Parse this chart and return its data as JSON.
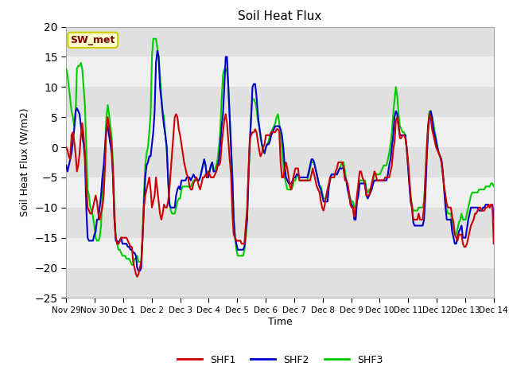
{
  "title": "Soil Heat Flux",
  "ylabel": "Soil Heat Flux (W/m2)",
  "xlabel": "Time",
  "ylim": [
    -25,
    20
  ],
  "yticks": [
    -25,
    -20,
    -15,
    -10,
    -5,
    0,
    5,
    10,
    15,
    20
  ],
  "colors": {
    "SHF1": "#cc0000",
    "SHF2": "#0000cc",
    "SHF3": "#00cc00"
  },
  "legend_label": "SW_met",
  "legend_box_facecolor": "#ffffcc",
  "legend_box_edgecolor": "#cccc00",
  "fig_bg_color": "#ffffff",
  "plot_bg_color": "#ffffff",
  "band_color_dark": "#e0e0e0",
  "band_color_light": "#f0f0f0",
  "xtick_labels": [
    "Nov 29",
    "Nov 30",
    "Dec 1",
    "Dec 2",
    "Dec 3",
    "Dec 4",
    "Dec 5",
    "Dec 6",
    "Dec 7",
    "Dec 8",
    "Dec 9",
    "Dec 10",
    "Dec 11",
    "Dec 12",
    "Dec 13",
    "Dec 14"
  ],
  "linewidth": 1.5,
  "series": {
    "SHF1": [
      0.0,
      -0.5,
      -1.5,
      -2.0,
      2.0,
      2.5,
      1.0,
      -1.0,
      -4.0,
      -3.0,
      -1.0,
      2.0,
      4.0,
      2.0,
      -1.0,
      -6.0,
      -10.0,
      -10.5,
      -11.0,
      -11.0,
      -10.0,
      -9.0,
      -8.0,
      -9.0,
      -11.0,
      -12.0,
      -11.0,
      -10.0,
      -8.0,
      -3.0,
      3.0,
      5.0,
      3.5,
      2.0,
      0.0,
      -5.0,
      -12.0,
      -15.0,
      -16.0,
      -16.0,
      -15.5,
      -15.0,
      -15.0,
      -15.0,
      -15.0,
      -15.0,
      -15.5,
      -16.0,
      -16.5,
      -16.5,
      -19.0,
      -20.0,
      -21.0,
      -21.5,
      -21.0,
      -20.0,
      -19.0,
      -15.0,
      -10.0,
      -8.0,
      -7.0,
      -6.0,
      -5.0,
      -7.0,
      -10.0,
      -9.0,
      -8.0,
      -5.0,
      -7.0,
      -9.0,
      -11.0,
      -12.0,
      -11.0,
      -9.5,
      -10.0,
      -10.0,
      -9.0,
      -7.0,
      -4.0,
      -1.0,
      2.0,
      5.0,
      5.5,
      5.0,
      3.0,
      2.0,
      0.5,
      -1.0,
      -2.5,
      -3.5,
      -4.5,
      -5.0,
      -6.5,
      -7.0,
      -7.0,
      -6.0,
      -5.5,
      -5.0,
      -5.5,
      -6.5,
      -7.0,
      -6.0,
      -5.0,
      -5.0,
      -4.5,
      -5.0,
      -4.0,
      -4.5,
      -5.0,
      -5.0,
      -5.0,
      -4.5,
      -4.0,
      -3.0,
      -3.0,
      -2.5,
      0.5,
      2.5,
      4.5,
      5.5,
      4.0,
      1.0,
      -2.0,
      -4.5,
      -11.0,
      -14.5,
      -15.0,
      -15.5,
      -15.5,
      -15.5,
      -15.5,
      -16.0,
      -16.0,
      -16.0,
      -13.0,
      -10.0,
      -4.0,
      1.5,
      2.0,
      2.5,
      2.5,
      3.0,
      2.5,
      1.0,
      -0.5,
      -1.5,
      -1.0,
      0.0,
      0.5,
      2.0,
      2.0,
      2.0,
      2.0,
      2.5,
      2.5,
      2.5,
      2.5,
      3.0,
      3.0,
      2.5,
      -2.5,
      -5.0,
      -5.0,
      -3.5,
      -2.5,
      -3.5,
      -5.0,
      -6.5,
      -7.0,
      -5.5,
      -4.5,
      -3.5,
      -3.5,
      -3.5,
      -5.5,
      -5.5,
      -5.5,
      -5.5,
      -5.5,
      -5.5,
      -5.5,
      -5.5,
      -5.5,
      -4.5,
      -3.5,
      -4.5,
      -5.5,
      -6.5,
      -7.0,
      -7.5,
      -9.0,
      -10.0,
      -10.5,
      -9.5,
      -8.0,
      -7.0,
      -6.0,
      -5.0,
      -5.0,
      -5.0,
      -5.0,
      -4.0,
      -3.5,
      -2.5,
      -2.5,
      -2.5,
      -2.5,
      -3.5,
      -5.5,
      -5.5,
      -6.0,
      -7.5,
      -9.5,
      -10.0,
      -10.0,
      -11.5,
      -10.0,
      -8.0,
      -6.0,
      -4.0,
      -4.0,
      -5.0,
      -5.5,
      -6.5,
      -8.0,
      -8.0,
      -8.0,
      -7.0,
      -6.0,
      -5.0,
      -4.0,
      -4.5,
      -5.5,
      -5.5,
      -5.5,
      -5.5,
      -5.5,
      -5.5,
      -5.0,
      -5.0,
      -5.0,
      -5.0,
      -4.0,
      -3.0,
      -0.5,
      1.0,
      4.5,
      5.0,
      3.5,
      1.5,
      1.5,
      2.0,
      2.0,
      1.5,
      0.0,
      -2.0,
      -5.0,
      -8.0,
      -10.0,
      -12.0,
      -12.0,
      -12.0,
      -12.0,
      -11.0,
      -12.0,
      -12.0,
      -12.0,
      -10.0,
      -5.0,
      -0.5,
      3.5,
      5.5,
      5.0,
      3.0,
      2.0,
      1.0,
      0.0,
      -0.5,
      -1.0,
      -1.5,
      -2.5,
      -4.5,
      -6.5,
      -8.0,
      -9.5,
      -10.0,
      -10.0,
      -10.0,
      -11.5,
      -12.5,
      -14.5,
      -15.0,
      -15.5,
      -14.5,
      -14.5,
      -14.5,
      -16.0,
      -16.5,
      -16.5,
      -16.0,
      -15.0,
      -14.0,
      -13.0,
      -12.5,
      -12.0,
      -11.0,
      -11.0,
      -10.5,
      -10.0,
      -10.0,
      -10.5,
      -10.5,
      -10.5,
      -10.0,
      -10.0,
      -9.5,
      -10.0,
      -9.5,
      -9.5,
      -16.0
    ],
    "SHF2": [
      -3.0,
      -4.0,
      -3.0,
      -2.0,
      -1.0,
      1.0,
      3.0,
      6.0,
      6.5,
      6.0,
      5.5,
      3.5,
      2.0,
      0.5,
      -2.0,
      -10.0,
      -15.0,
      -15.5,
      -15.5,
      -15.5,
      -15.5,
      -14.5,
      -14.0,
      -12.0,
      -12.0,
      -10.0,
      -8.0,
      -5.0,
      -3.0,
      0.0,
      3.0,
      3.5,
      2.0,
      0.5,
      -1.0,
      -5.0,
      -12.0,
      -15.5,
      -15.5,
      -16.0,
      -15.5,
      -15.0,
      -16.0,
      -16.0,
      -16.0,
      -16.0,
      -16.5,
      -16.5,
      -17.0,
      -17.0,
      -17.5,
      -17.5,
      -18.0,
      -20.0,
      -20.5,
      -20.5,
      -20.0,
      -15.0,
      -10.0,
      -5.0,
      -3.0,
      -2.5,
      -1.5,
      -1.5,
      0.5,
      2.5,
      6.0,
      14.0,
      16.0,
      15.0,
      10.0,
      8.0,
      5.5,
      3.5,
      2.0,
      0.0,
      -5.0,
      -9.5,
      -10.0,
      -10.0,
      -10.0,
      -10.0,
      -8.0,
      -7.0,
      -6.5,
      -7.0,
      -5.5,
      -5.5,
      -5.5,
      -5.5,
      -5.0,
      -5.0,
      -5.0,
      -5.5,
      -5.0,
      -4.5,
      -5.0,
      -5.0,
      -5.5,
      -5.5,
      -5.0,
      -4.0,
      -3.0,
      -2.0,
      -3.0,
      -5.0,
      -5.0,
      -4.0,
      -3.0,
      -2.5,
      -4.0,
      -4.0,
      -4.0,
      -3.0,
      -2.0,
      0.5,
      3.5,
      5.5,
      10.0,
      15.0,
      15.0,
      10.0,
      5.0,
      0.0,
      -5.0,
      -12.0,
      -15.0,
      -16.0,
      -17.0,
      -17.0,
      -17.0,
      -17.0,
      -17.0,
      -16.5,
      -14.0,
      -12.0,
      -5.0,
      0.5,
      5.0,
      10.0,
      10.5,
      10.5,
      8.5,
      5.5,
      3.5,
      2.0,
      0.5,
      -0.5,
      -1.0,
      0.0,
      0.5,
      0.5,
      1.0,
      2.0,
      2.5,
      3.0,
      3.5,
      3.5,
      3.5,
      3.5,
      3.0,
      2.0,
      0.0,
      -3.0,
      -5.0,
      -5.5,
      -6.0,
      -6.0,
      -6.0,
      -5.5,
      -5.0,
      -5.0,
      -4.5,
      -4.5,
      -5.0,
      -5.0,
      -5.0,
      -5.0,
      -5.0,
      -5.0,
      -5.0,
      -4.0,
      -3.0,
      -2.0,
      -2.0,
      -2.5,
      -3.5,
      -4.5,
      -5.5,
      -6.5,
      -7.0,
      -8.0,
      -9.0,
      -9.0,
      -9.0,
      -9.0,
      -6.5,
      -5.0,
      -4.5,
      -4.5,
      -4.5,
      -4.5,
      -4.5,
      -4.0,
      -3.5,
      -3.5,
      -3.5,
      -3.5,
      -5.0,
      -5.5,
      -7.0,
      -8.0,
      -9.0,
      -9.5,
      -10.0,
      -12.0,
      -12.0,
      -9.0,
      -8.0,
      -6.0,
      -6.0,
      -6.0,
      -6.0,
      -6.0,
      -8.0,
      -8.5,
      -8.0,
      -7.5,
      -7.0,
      -6.0,
      -5.5,
      -5.5,
      -5.5,
      -5.5,
      -5.5,
      -5.5,
      -5.5,
      -5.5,
      -5.5,
      -5.5,
      -4.5,
      -3.0,
      -2.0,
      0.0,
      2.0,
      5.0,
      6.0,
      5.5,
      3.5,
      2.0,
      2.0,
      2.0,
      2.0,
      2.0,
      0.0,
      -3.0,
      -6.0,
      -9.0,
      -10.0,
      -12.5,
      -13.0,
      -13.0,
      -13.0,
      -13.0,
      -13.0,
      -13.0,
      -13.0,
      -12.0,
      -8.0,
      -2.0,
      2.5,
      5.0,
      6.0,
      5.0,
      3.0,
      2.0,
      1.0,
      0.0,
      -1.0,
      -1.5,
      -2.0,
      -4.0,
      -7.0,
      -10.0,
      -12.0,
      -12.0,
      -12.0,
      -12.0,
      -14.0,
      -15.0,
      -16.0,
      -16.0,
      -15.0,
      -14.0,
      -13.5,
      -13.0,
      -15.0,
      -15.0,
      -15.0,
      -13.5,
      -12.0,
      -11.0,
      -10.0,
      -10.0,
      -10.0,
      -10.0,
      -10.0,
      -10.0,
      -10.5,
      -10.5,
      -10.5,
      -10.0,
      -10.0,
      -9.5,
      -9.5,
      -9.5,
      -10.0,
      -9.5,
      -9.5,
      -12.0
    ],
    "SHF3": [
      13.0,
      12.0,
      10.0,
      8.0,
      6.0,
      5.0,
      3.5,
      5.0,
      13.0,
      13.5,
      13.5,
      14.0,
      13.0,
      10.0,
      7.0,
      0.0,
      -7.0,
      -8.0,
      -10.0,
      -10.5,
      -11.5,
      -13.0,
      -15.0,
      -15.5,
      -15.5,
      -15.0,
      -13.0,
      -8.0,
      -5.0,
      0.0,
      5.0,
      7.0,
      5.5,
      3.5,
      1.5,
      -3.0,
      -10.0,
      -15.0,
      -16.0,
      -17.0,
      -17.0,
      -17.5,
      -18.0,
      -18.0,
      -18.0,
      -18.5,
      -18.5,
      -18.5,
      -19.0,
      -19.5,
      -19.5,
      -18.5,
      -18.5,
      -18.0,
      -19.0,
      -19.0,
      -19.0,
      -14.0,
      -8.0,
      -3.0,
      -1.0,
      0.0,
      2.5,
      5.5,
      15.0,
      18.0,
      18.0,
      18.0,
      16.5,
      15.0,
      12.0,
      8.5,
      6.0,
      5.0,
      2.0,
      0.0,
      -5.0,
      -9.0,
      -10.5,
      -11.0,
      -11.0,
      -11.0,
      -10.0,
      -9.0,
      -8.5,
      -8.5,
      -7.0,
      -6.5,
      -6.5,
      -6.5,
      -6.5,
      -6.5,
      -6.5,
      -6.5,
      -6.0,
      -5.5,
      -5.5,
      -5.5,
      -5.5,
      -5.5,
      -5.0,
      -4.0,
      -3.0,
      -2.0,
      -3.0,
      -5.0,
      -5.0,
      -4.0,
      -3.0,
      -2.5,
      -4.0,
      -3.5,
      -3.0,
      -2.0,
      0.0,
      3.0,
      8.0,
      12.0,
      13.0,
      13.0,
      12.5,
      10.0,
      5.0,
      0.5,
      -5.0,
      -12.0,
      -15.0,
      -17.0,
      -18.0,
      -18.0,
      -18.0,
      -18.0,
      -18.0,
      -17.0,
      -15.0,
      -12.0,
      -5.0,
      0.5,
      5.5,
      8.0,
      8.0,
      7.5,
      6.5,
      4.5,
      3.5,
      1.5,
      0.5,
      -0.5,
      -1.0,
      0.0,
      0.5,
      1.0,
      2.0,
      2.5,
      3.0,
      3.5,
      4.0,
      5.0,
      5.5,
      4.0,
      2.0,
      0.0,
      -3.0,
      -5.0,
      -6.0,
      -7.0,
      -7.0,
      -7.0,
      -7.0,
      -6.5,
      -5.5,
      -5.5,
      -4.5,
      -4.5,
      -5.5,
      -5.5,
      -5.5,
      -5.5,
      -5.5,
      -5.5,
      -5.5,
      -4.5,
      -3.5,
      -2.5,
      -2.5,
      -2.5,
      -3.5,
      -4.5,
      -5.5,
      -6.5,
      -6.5,
      -7.5,
      -8.5,
      -8.5,
      -8.5,
      -8.5,
      -6.5,
      -5.5,
      -4.5,
      -4.5,
      -4.5,
      -4.5,
      -4.5,
      -4.0,
      -3.5,
      -3.0,
      -2.5,
      -2.5,
      -4.0,
      -5.5,
      -6.5,
      -7.5,
      -8.5,
      -9.0,
      -9.0,
      -10.0,
      -10.5,
      -8.0,
      -7.0,
      -5.5,
      -5.5,
      -5.5,
      -5.5,
      -5.5,
      -7.0,
      -7.5,
      -7.0,
      -7.0,
      -6.5,
      -5.5,
      -4.5,
      -4.5,
      -4.5,
      -4.5,
      -4.5,
      -4.0,
      -3.5,
      -3.0,
      -3.0,
      -3.0,
      -2.0,
      -1.0,
      0.5,
      2.5,
      5.5,
      8.0,
      10.0,
      8.5,
      5.5,
      3.5,
      3.0,
      2.5,
      2.5,
      2.0,
      0.0,
      -3.0,
      -6.0,
      -8.5,
      -9.5,
      -10.5,
      -10.5,
      -10.5,
      -10.5,
      -10.0,
      -10.0,
      -10.0,
      -10.0,
      -9.0,
      -5.0,
      0.0,
      3.5,
      6.0,
      6.0,
      5.0,
      4.0,
      2.5,
      1.5,
      0.0,
      -1.0,
      -1.5,
      -2.5,
      -4.5,
      -6.5,
      -8.5,
      -10.5,
      -11.0,
      -11.0,
      -11.0,
      -12.5,
      -13.5,
      -14.5,
      -14.5,
      -13.5,
      -12.5,
      -12.0,
      -11.0,
      -12.0,
      -12.0,
      -12.0,
      -11.0,
      -10.0,
      -9.0,
      -8.0,
      -7.5,
      -7.5,
      -7.5,
      -7.5,
      -7.5,
      -7.0,
      -7.0,
      -7.0,
      -7.0,
      -7.0,
      -6.5,
      -6.5,
      -6.5,
      -6.5,
      -6.0,
      -6.0,
      -6.5
    ]
  }
}
